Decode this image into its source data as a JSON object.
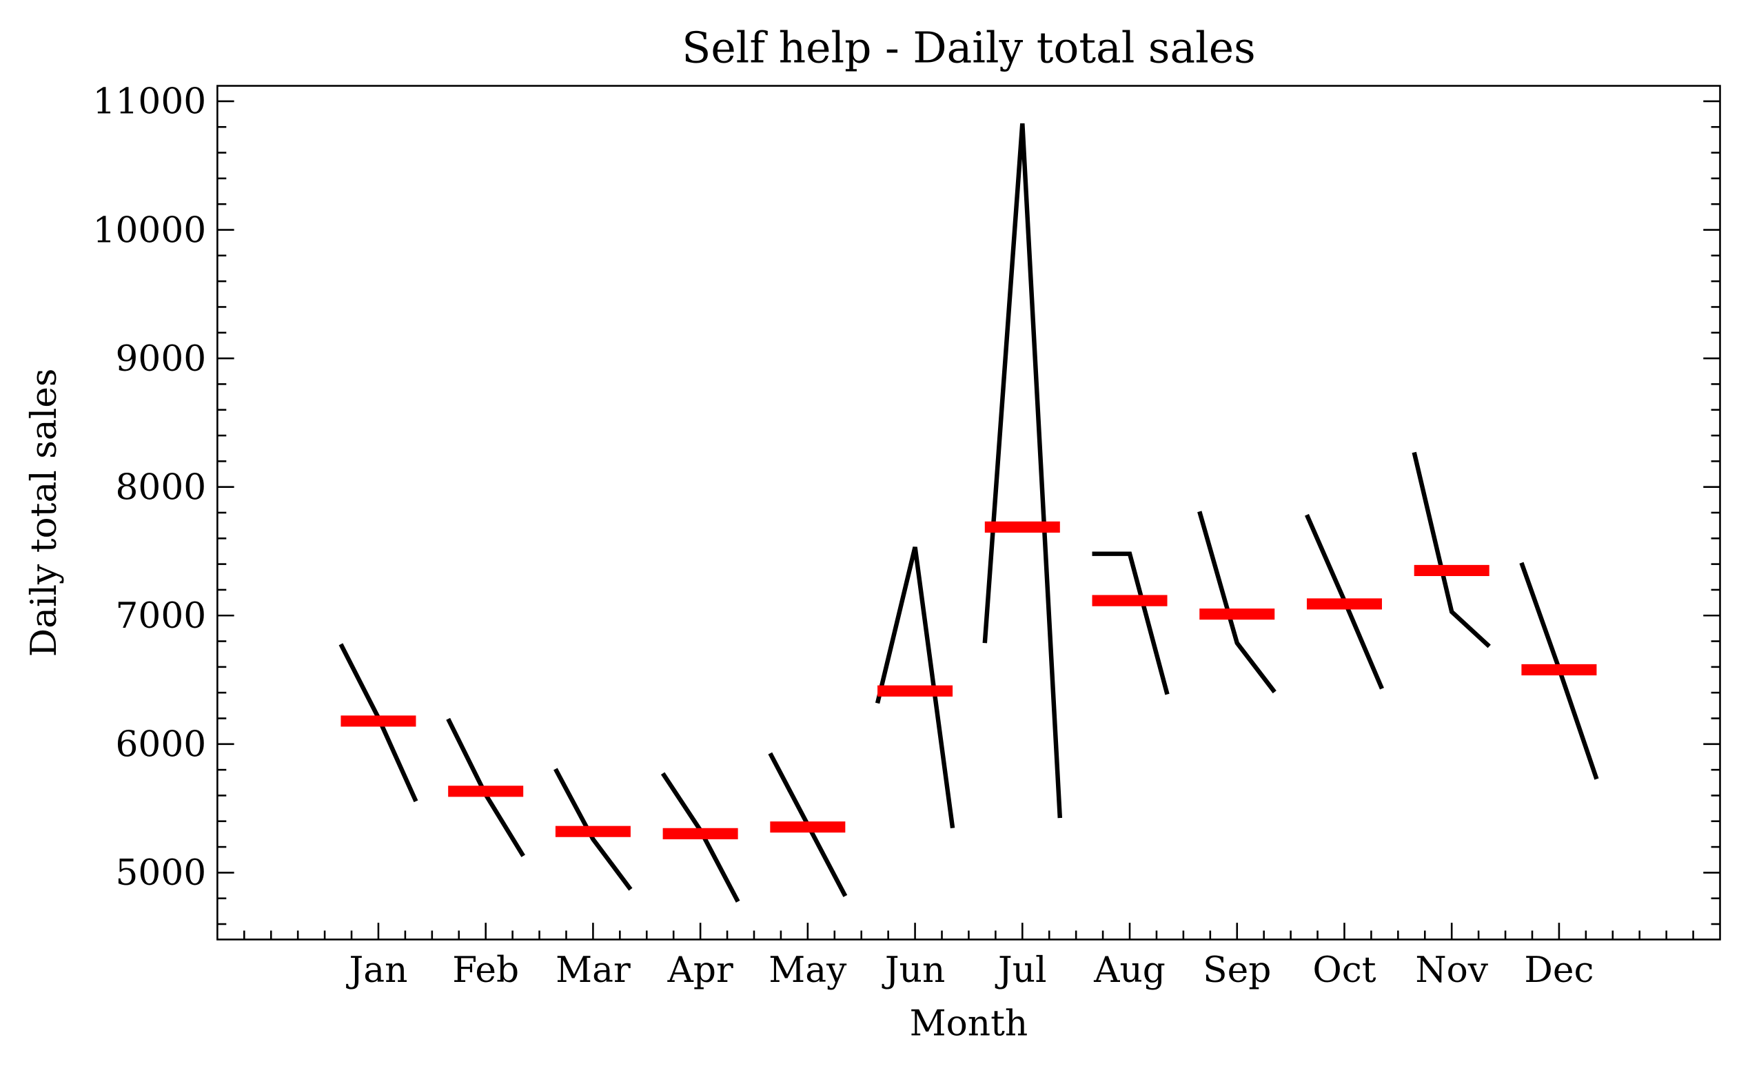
{
  "chart_data": {
    "type": "line",
    "title": "Self help - Daily total sales",
    "xlabel": "Month",
    "ylabel": "Daily total sales",
    "categories": [
      "Jan",
      "Feb",
      "Mar",
      "Apr",
      "May",
      "Jun",
      "Jul",
      "Aug",
      "Sep",
      "Oct",
      "Nov",
      "Dec"
    ],
    "values": [
      [
        6777,
        6205,
        5555
      ],
      [
        6196,
        5607,
        5130
      ],
      [
        5806,
        5260,
        4870
      ],
      [
        5772,
        5330,
        4775
      ],
      [
        5928,
        5373,
        4818
      ],
      [
        6318,
        7532,
        5347
      ],
      [
        6786,
        10827,
        5425
      ],
      [
        7480,
        7480,
        6387
      ],
      [
        7809,
        6786,
        6405
      ],
      [
        7783,
        7116,
        6431
      ],
      [
        8269,
        7029,
        6760
      ],
      [
        7410,
        6587,
        5728
      ]
    ],
    "means": [
      6179,
      5633,
      5320,
      5303,
      5355,
      6413,
      7688,
      7116,
      7011,
      7090,
      7350,
      6578
    ],
    "color": "#000000",
    "mean_color": "#ff0000",
    "xlim": [
      -1.5,
      12.5
    ],
    "xminorticks": [
      -1.25,
      -1,
      -0.75,
      -0.5,
      -0.25,
      0.25,
      0.5,
      0.75,
      1.25,
      1.5,
      1.75,
      2.25,
      2.5,
      2.75,
      3.25,
      3.5,
      3.75,
      4.25,
      4.5,
      4.75,
      5.25,
      5.5,
      5.75,
      6.25,
      6.5,
      6.75,
      7.25,
      7.5,
      7.75,
      8.25,
      8.5,
      8.75,
      9.25,
      9.5,
      9.75,
      10.25,
      10.5,
      10.75,
      11.25,
      11.5,
      11.75,
      12,
      12.25
    ],
    "ylim": [
      4480,
      11120
    ],
    "yticks": [
      5000,
      6000,
      7000,
      8000,
      9000,
      10000,
      11000
    ],
    "yminorticks": [
      4600,
      4800,
      5200,
      5400,
      5600,
      5800,
      6200,
      6400,
      6600,
      6800,
      7200,
      7400,
      7600,
      7800,
      8200,
      8400,
      8600,
      8800,
      9200,
      9400,
      9600,
      9800,
      10200,
      10400,
      10600,
      10800
    ],
    "grid": false
  }
}
